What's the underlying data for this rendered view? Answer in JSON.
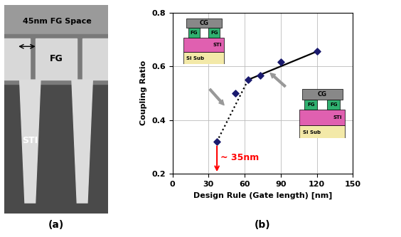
{
  "chart_data": {
    "type": "scatter",
    "x_label": "Design Rule (Gate length) [nm]",
    "y_label": "Coupling Ratio",
    "x": [
      37,
      52,
      63,
      73,
      90,
      120
    ],
    "values": [
      0.32,
      0.5,
      0.55,
      0.565,
      0.615,
      0.655
    ],
    "color": "#1a1a6e",
    "marker": "diamond",
    "series": [
      {
        "type": "line",
        "x": [
          37,
          63
        ],
        "values": [
          0.32,
          0.55
        ],
        "line_style": "dotted",
        "color": "#000000"
      },
      {
        "type": "line",
        "x": [
          63,
          120
        ],
        "values": [
          0.55,
          0.655
        ],
        "line_style": "solid",
        "color": "#000000"
      }
    ],
    "xlim": [
      0,
      150
    ],
    "xticks": [
      0,
      30,
      60,
      90,
      120,
      150
    ],
    "ylim": [
      0.2,
      0.8
    ],
    "yticks": [
      0.2,
      0.4,
      0.6,
      0.8
    ],
    "grid": true,
    "annotation": {
      "text": "~ 35nm",
      "x": 37,
      "color": "#ff0000"
    }
  },
  "photo": {
    "labels": [
      "45nm FG Space",
      "FG",
      "STI"
    ]
  },
  "insets": [
    {
      "labels": [
        "CG",
        "FG",
        "FG",
        "STI",
        "Si Sub"
      ]
    },
    {
      "labels": [
        "CG",
        "FG",
        "FG",
        "STI",
        "Si Sub"
      ]
    }
  ],
  "panel_labels": [
    "(a)",
    "(b)"
  ]
}
